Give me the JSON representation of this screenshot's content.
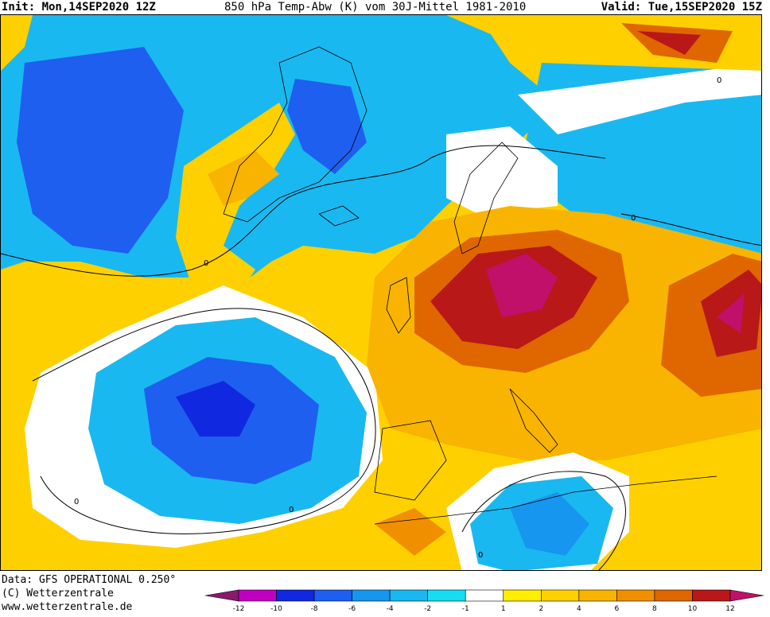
{
  "header": {
    "init": "Init: Mon,14SEP2020 12Z",
    "title": "850 hPa Temp-Abw (K) vom 30J-Mittel 1981-2010",
    "valid": "Valid: Tue,15SEP2020 15Z"
  },
  "footer": {
    "data_line": "Data: GFS OPERATIONAL 0.250°",
    "copyright": "(C) Wetterzentrale",
    "url": "www.wetterzentrale.de"
  },
  "legend": {
    "bins": [
      {
        "color": "#8a1a6e"
      },
      {
        "color": "#c000c0"
      },
      {
        "color": "#1028e0"
      },
      {
        "color": "#1e5ff0"
      },
      {
        "color": "#1696ee"
      },
      {
        "color": "#1ab8f0"
      },
      {
        "color": "#18dcf0"
      },
      {
        "color": "#ffffff"
      },
      {
        "color": "#ffee00"
      },
      {
        "color": "#ffd000"
      },
      {
        "color": "#f8b400"
      },
      {
        "color": "#f09000"
      },
      {
        "color": "#e06600"
      },
      {
        "color": "#b81818"
      },
      {
        "color": "#c0106a"
      }
    ],
    "ticks": [
      "-12",
      "-10",
      "-8",
      "-6",
      "-4",
      "-2",
      "-1",
      "1",
      "2",
      "4",
      "6",
      "8",
      "10",
      "12"
    ]
  },
  "contour_label": "0",
  "colors": {
    "cold_deep": "#1028e0",
    "cold": "#1e5ff0",
    "cool": "#1696ee",
    "cool_light": "#18dcf0",
    "neutral": "#ffffff",
    "warm_light": "#ffee00",
    "warm": "#ffd000",
    "warmer": "#f8b400",
    "hot": "#f09000",
    "very_hot": "#b81818",
    "extreme": "#c0106a"
  }
}
